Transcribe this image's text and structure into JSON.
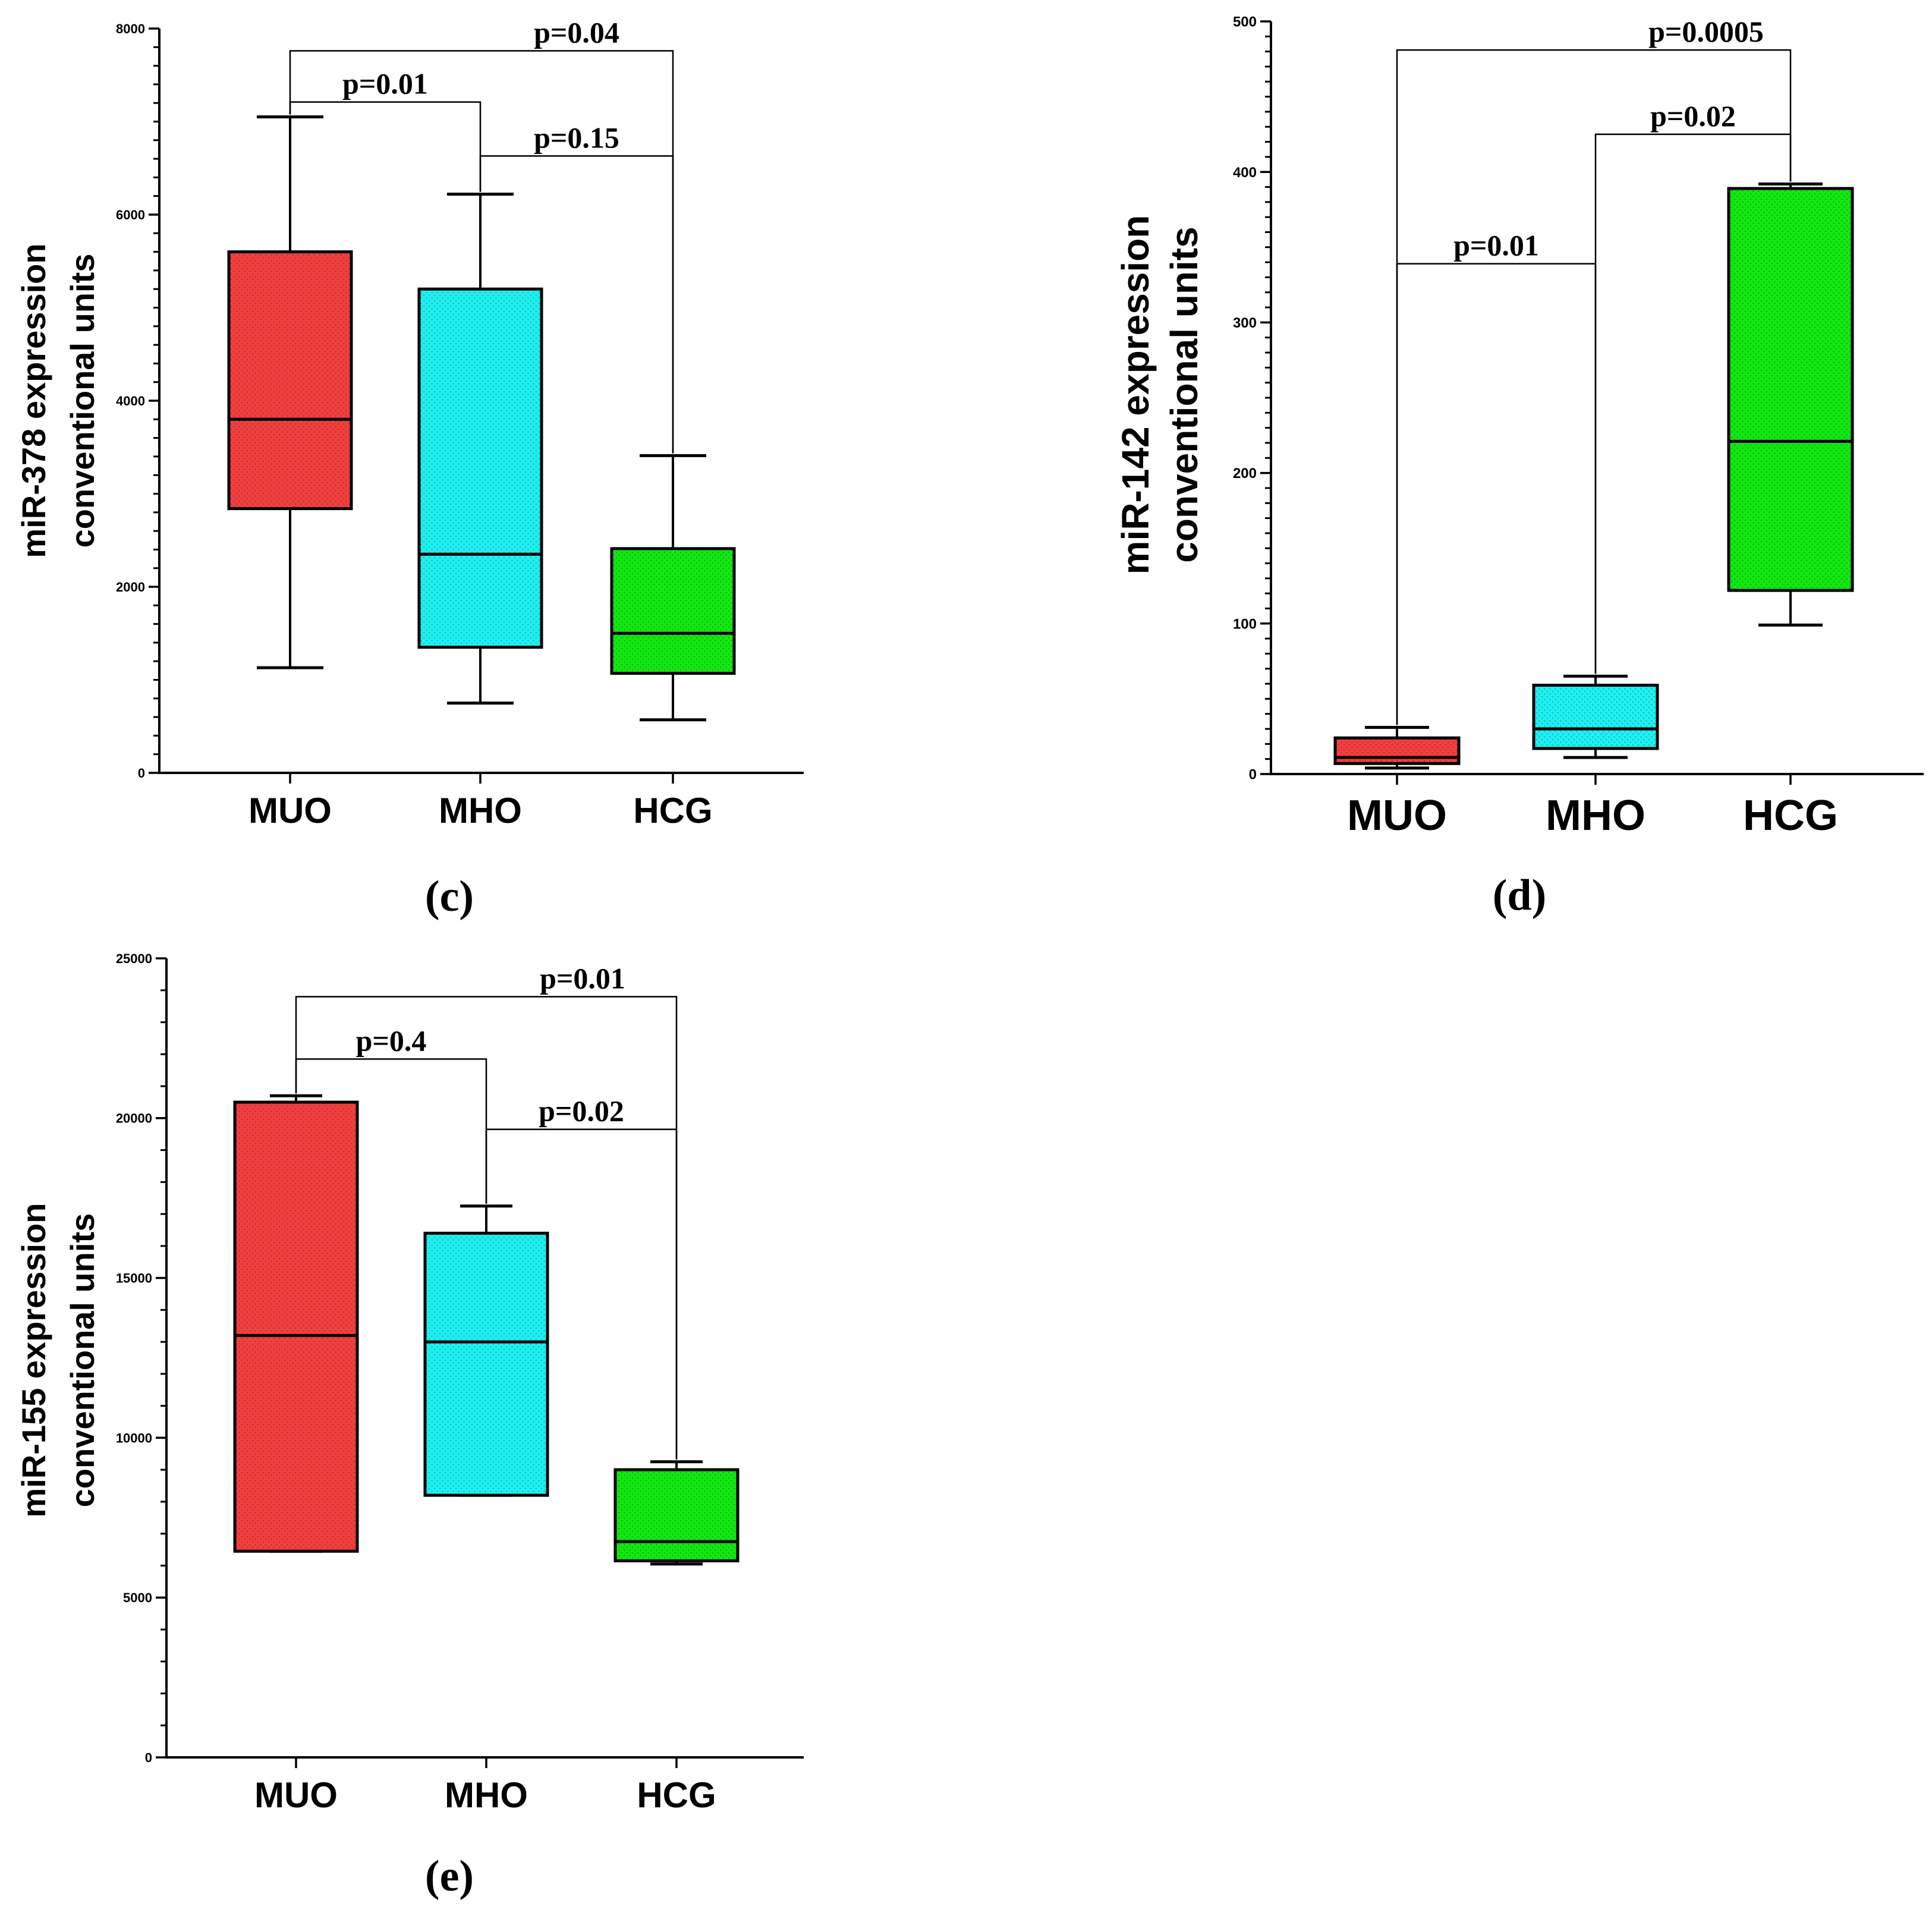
{
  "chart_data": [
    {
      "type": "box",
      "panel_label": "(c)",
      "ylabel_line1": "miR-378 expression",
      "ylabel_line2": "conventional units",
      "ylim": [
        0,
        8000
      ],
      "yticks": [
        0,
        2000,
        4000,
        6000,
        8000
      ],
      "ytick_labels": [
        "0",
        "2000",
        "4000",
        "6000",
        "8000"
      ],
      "minor_tick_step": 200,
      "categories": [
        "MUO",
        "MHO",
        "HCG"
      ],
      "boxes": [
        {
          "name": "MUO",
          "color": "#f23f3f",
          "min": 1130,
          "q1": 2840,
          "median": 3800,
          "q3": 5600,
          "max": 7050
        },
        {
          "name": "MHO",
          "color": "#1ff0f0",
          "min": 750,
          "q1": 1350,
          "median": 2350,
          "q3": 5200,
          "max": 6220
        },
        {
          "name": "HCG",
          "color": "#12e812",
          "min": 570,
          "q1": 1070,
          "median": 1500,
          "q3": 2410,
          "max": 3410
        }
      ],
      "brackets": [
        {
          "from": 0,
          "to": 2,
          "y": 7760,
          "left_end": 7050,
          "right_end": 3410,
          "label": "p=0.04",
          "label_at": "right"
        },
        {
          "from": 0,
          "to": 1,
          "y": 7210,
          "left_end": 7050,
          "right_end": 6220,
          "label": "p=0.01",
          "label_at": "center"
        },
        {
          "from": 1,
          "to": 2,
          "y": 6630,
          "left_end": 6220,
          "right_end": 3410,
          "label": "p=0.15",
          "label_at": "center"
        }
      ]
    },
    {
      "type": "box",
      "panel_label": "(d)",
      "ylabel_line1": "miR-142 expression",
      "ylabel_line2": "conventional units",
      "ylim": [
        0,
        500
      ],
      "yticks": [
        0,
        100,
        200,
        300,
        400,
        500
      ],
      "ytick_labels": [
        "0",
        "100",
        "200",
        "300",
        "400",
        "500"
      ],
      "minor_tick_step": 10,
      "categories": [
        "MUO",
        "MHO",
        "HCG"
      ],
      "boxes": [
        {
          "name": "MUO",
          "color": "#f23f3f",
          "min": 4,
          "q1": 7,
          "median": 11,
          "q3": 24,
          "max": 31
        },
        {
          "name": "MHO",
          "color": "#1ff0f0",
          "min": 11,
          "q1": 17,
          "median": 30,
          "q3": 59,
          "max": 65
        },
        {
          "name": "HCG",
          "color": "#12e812",
          "min": 99,
          "q1": 122,
          "median": 221,
          "q3": 389,
          "max": 392
        }
      ],
      "brackets": [
        {
          "from": 0,
          "to": 2,
          "y": 481,
          "left_end": 31,
          "right_end": 392,
          "label": "p=0.0005",
          "label_at": "right"
        },
        {
          "from": 1,
          "to": 2,
          "y": 425,
          "left_end": 65,
          "right_end": 392,
          "label": "p=0.02",
          "label_at": "center"
        },
        {
          "from": 0,
          "to": 1,
          "y": 339,
          "left_end": 31,
          "right_end": 65,
          "label": "p=0.01",
          "label_at": "center"
        }
      ]
    },
    {
      "type": "box",
      "panel_label": "(e)",
      "ylabel_line1": "miR-155 expression",
      "ylabel_line2": "conventional units",
      "ylim": [
        0,
        25000
      ],
      "yticks": [
        0,
        5000,
        10000,
        15000,
        20000,
        25000
      ],
      "ytick_labels": [
        "0",
        "5000",
        "10000",
        "15000",
        "20000",
        "25000"
      ],
      "minor_tick_step": 1000,
      "categories": [
        "MUO",
        "MHO",
        "HCG"
      ],
      "boxes": [
        {
          "name": "MUO",
          "color": "#f23f3f",
          "min": 6450,
          "q1": 6450,
          "median": 13200,
          "q3": 20500,
          "max": 20700
        },
        {
          "name": "MHO",
          "color": "#1ff0f0",
          "min": 8200,
          "q1": 8200,
          "median": 13000,
          "q3": 16400,
          "max": 17250
        },
        {
          "name": "HCG",
          "color": "#12e812",
          "min": 6050,
          "q1": 6150,
          "median": 6750,
          "q3": 9000,
          "max": 9250
        }
      ],
      "brackets": [
        {
          "from": 0,
          "to": 2,
          "y": 23800,
          "left_end": 20700,
          "right_end": 9250,
          "label": "p=0.01",
          "label_at": "right"
        },
        {
          "from": 0,
          "to": 1,
          "y": 21850,
          "left_end": 20700,
          "right_end": 17250,
          "label": "p=0.4",
          "label_at": "center"
        },
        {
          "from": 1,
          "to": 2,
          "y": 19650,
          "left_end": 17250,
          "right_end": 9250,
          "label": "p=0.02",
          "label_at": "center"
        }
      ]
    }
  ]
}
